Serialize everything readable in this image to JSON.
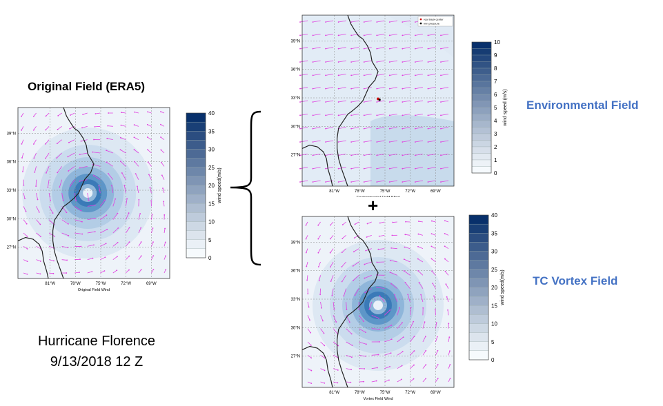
{
  "left_title": "Original Field (ERA5)",
  "env_label": "Environmental Field",
  "vortex_label": "TC Vortex Field",
  "plus": "+",
  "caption": {
    "line1": "Hurricane Florence",
    "line2": "9/13/2018 12 Z"
  },
  "colors": {
    "label_blue": "#4472c4",
    "arrow_magenta": "#e040e0",
    "coast": "#222222"
  },
  "maps": {
    "original": {
      "xlabel": "Original Field Wind",
      "lon_ticks": [
        "81°W",
        "78°W",
        "75°W",
        "72°W",
        "69°W"
      ],
      "lat_ticks": [
        "39°N",
        "36°N",
        "33°N",
        "30°N",
        "27°N"
      ]
    },
    "environmental": {
      "xlabel": "Environmental Field Wind",
      "lon_ticks": [
        "81°W",
        "78°W",
        "75°W",
        "72°W",
        "69°W"
      ],
      "lat_ticks": [
        "39°N",
        "36°N",
        "33°N",
        "30°N",
        "27°N"
      ],
      "legend": [
        "real track center",
        "min pressure"
      ]
    },
    "vortex": {
      "xlabel": "Vortex Field Wind",
      "lon_ticks": [
        "81°W",
        "78°W",
        "75°W",
        "72°W",
        "69°W"
      ],
      "lat_ticks": [
        "39°N",
        "36°N",
        "33°N",
        "30°N",
        "27°N"
      ]
    }
  },
  "colorbars": {
    "original": {
      "label": "wind speed(m/s)",
      "ticks": [
        "40",
        "35",
        "30",
        "25",
        "20",
        "15",
        "10",
        "5",
        "0"
      ]
    },
    "environmental": {
      "label": "wind speed (m/s)",
      "ticks": [
        "10",
        "9",
        "8",
        "7",
        "6",
        "5",
        "4",
        "3",
        "2",
        "1",
        "0"
      ]
    },
    "vortex": {
      "label": "wind speed(m/s)",
      "ticks": [
        "40",
        "35",
        "30",
        "25",
        "20",
        "15",
        "10",
        "5",
        "0"
      ]
    }
  }
}
